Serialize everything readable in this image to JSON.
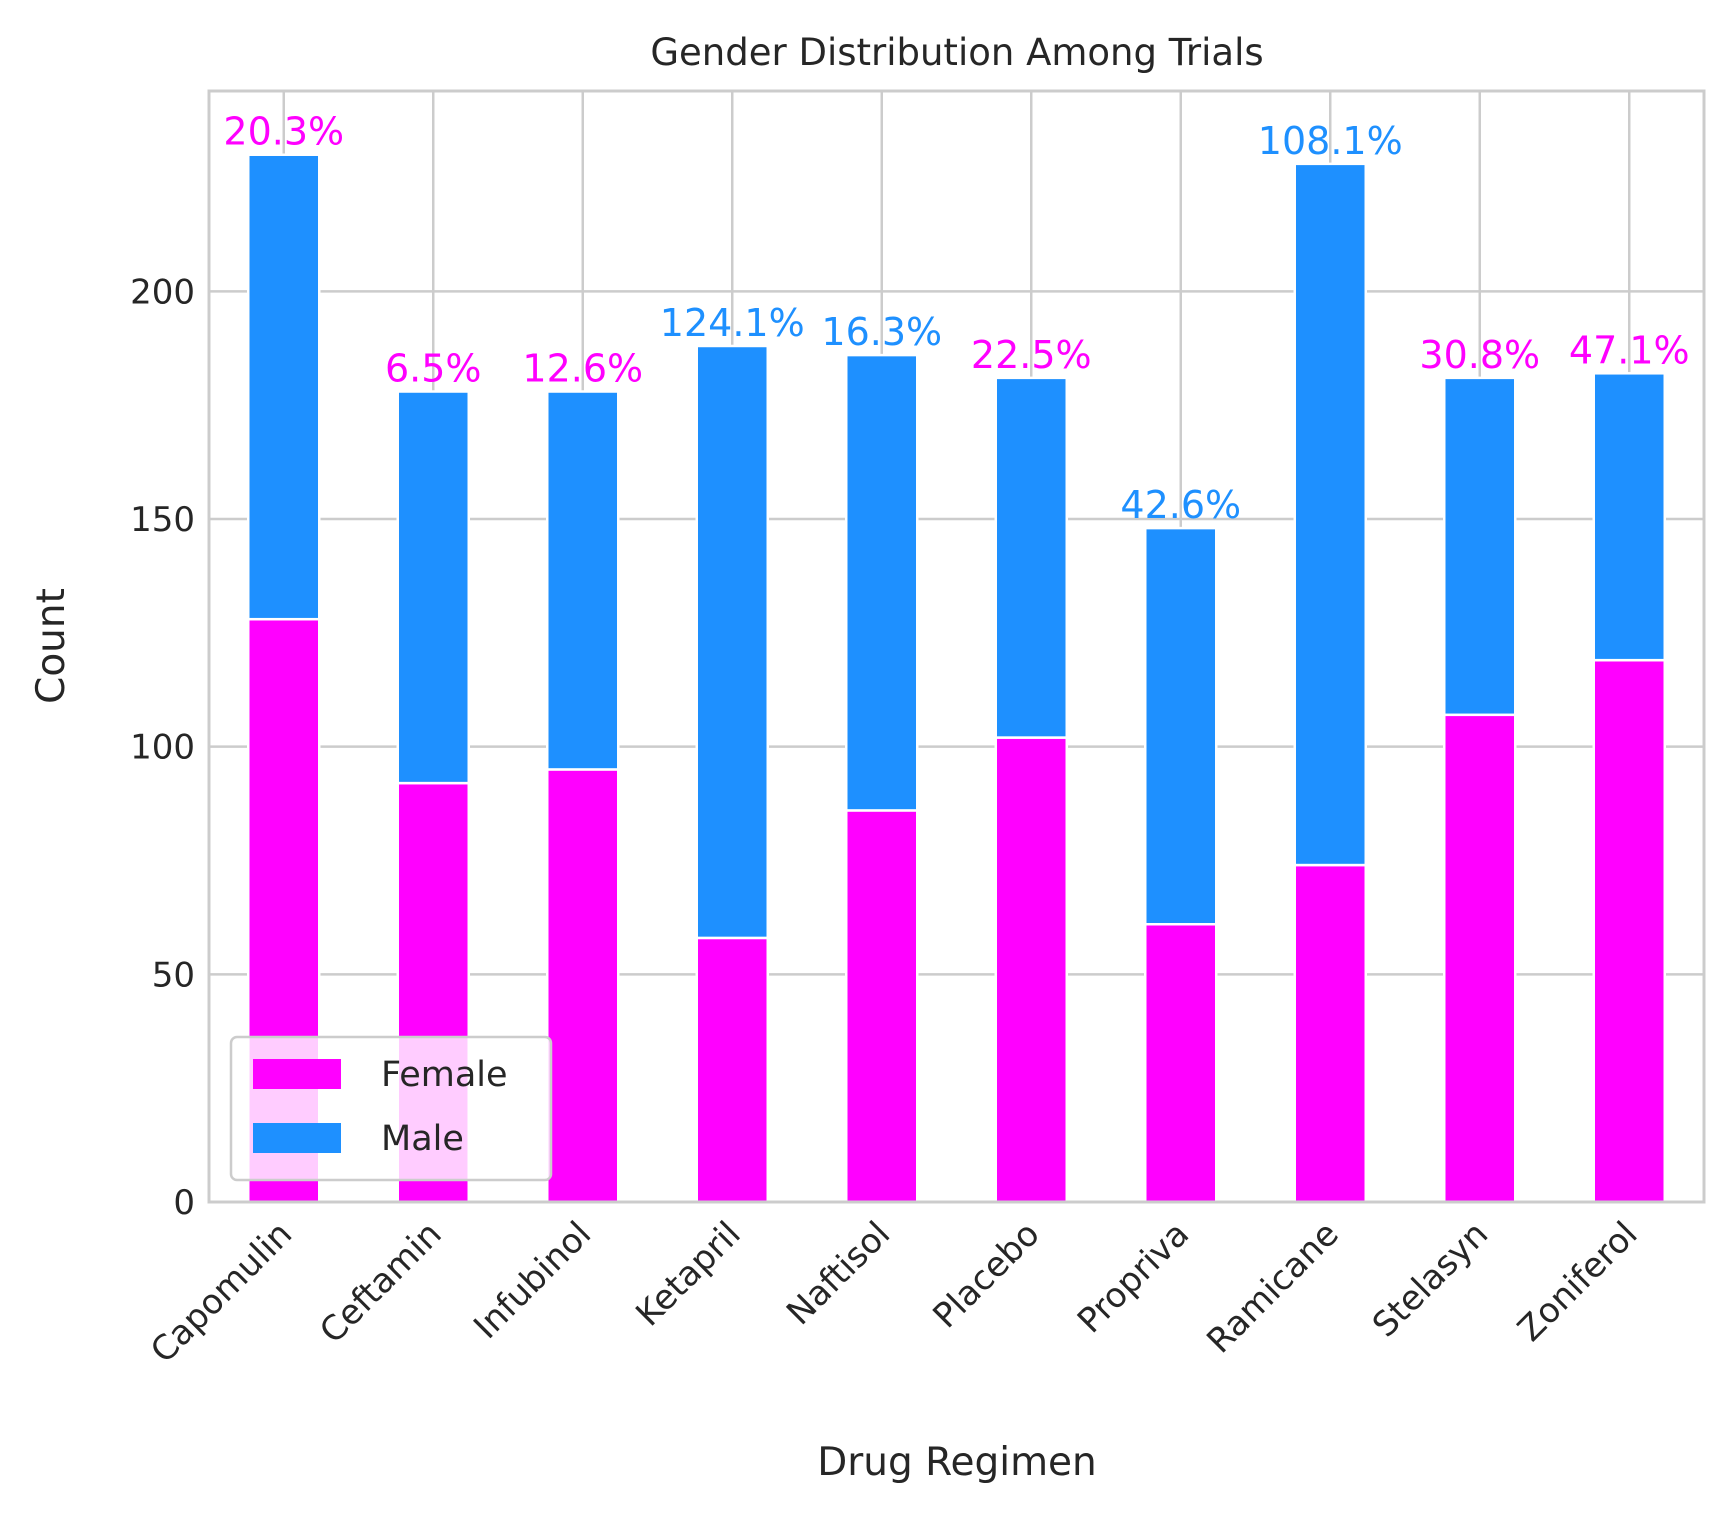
{
  "chart_data": {
    "type": "bar",
    "stacked": true,
    "title": "Gender Distribution Among Trials",
    "xlabel": "Drug Regimen",
    "ylabel": "Count",
    "ylim": [
      0,
      244
    ],
    "yticks": [
      0,
      50,
      100,
      150,
      200
    ],
    "grid": true,
    "legend_position": "lower-left",
    "categories": [
      "Capomulin",
      "Ceftamin",
      "Infubinol",
      "Ketapril",
      "Naftisol",
      "Placebo",
      "Propriva",
      "Ramicane",
      "Stelasyn",
      "Zoniferol"
    ],
    "series": [
      {
        "name": "Female",
        "color": "#ff00ff",
        "values": [
          128,
          92,
          95,
          58,
          86,
          102,
          61,
          74,
          107,
          119
        ]
      },
      {
        "name": "Male",
        "color": "#1e90ff",
        "values": [
          102,
          86,
          83,
          130,
          100,
          79,
          87,
          154,
          74,
          63
        ]
      }
    ],
    "annotations": [
      {
        "text": "20.3%",
        "color": "#ff00ff"
      },
      {
        "text": "6.5%",
        "color": "#ff00ff"
      },
      {
        "text": "12.6%",
        "color": "#ff00ff"
      },
      {
        "text": "124.1%",
        "color": "#1e90ff"
      },
      {
        "text": "16.3%",
        "color": "#1e90ff"
      },
      {
        "text": "22.5%",
        "color": "#ff00ff"
      },
      {
        "text": "42.6%",
        "color": "#1e90ff"
      },
      {
        "text": "108.1%",
        "color": "#1e90ff"
      },
      {
        "text": "30.8%",
        "color": "#ff00ff"
      },
      {
        "text": "47.1%",
        "color": "#ff00ff"
      }
    ]
  }
}
